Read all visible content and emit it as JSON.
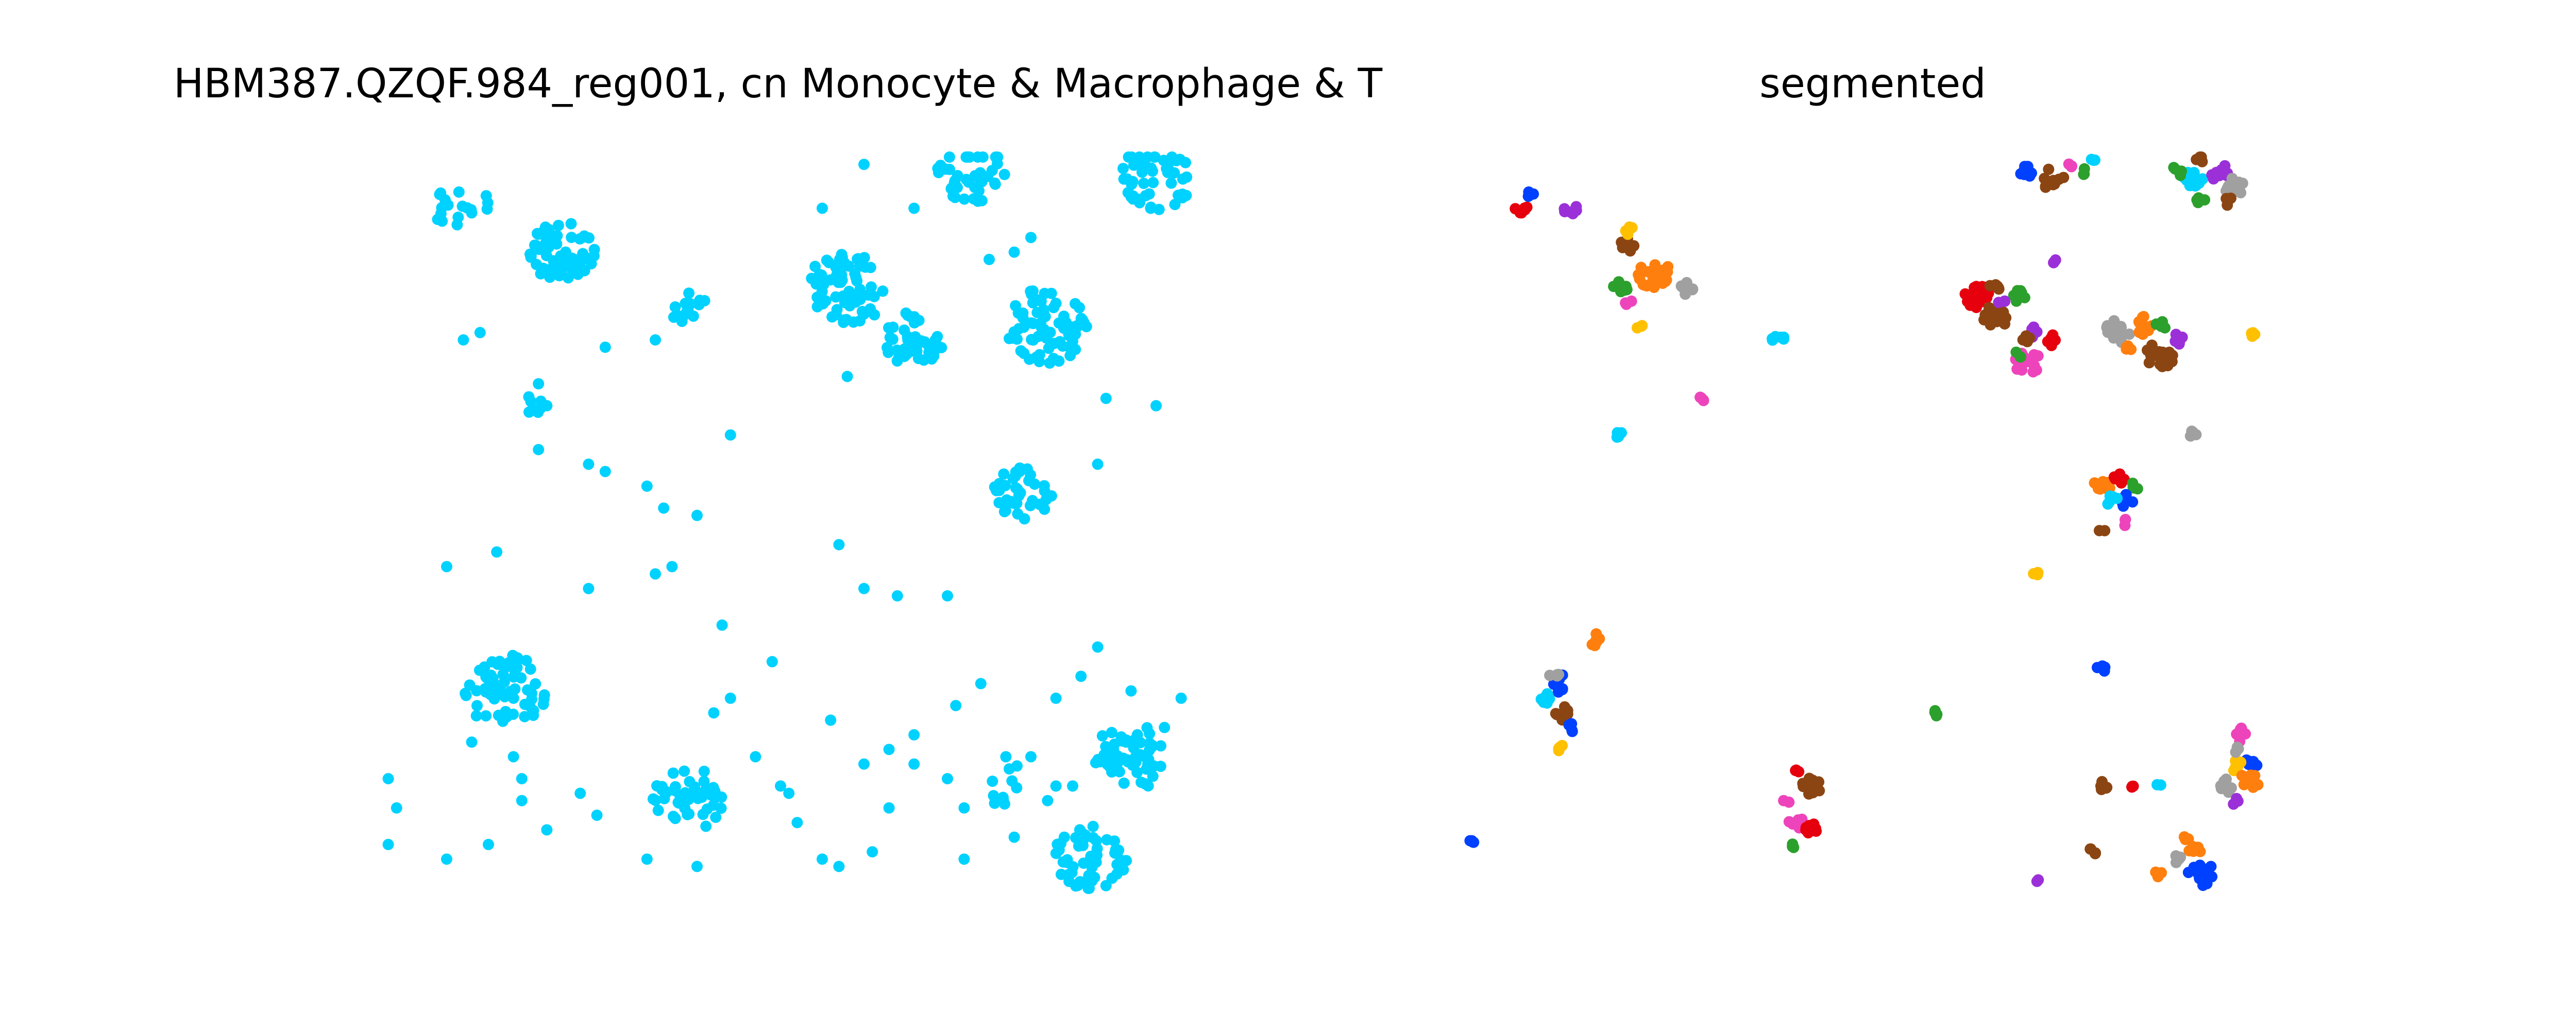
{
  "figure": {
    "left_title": "HBM387.QZQF.984_reg001, cn Monocyte & Macrophage & T",
    "right_title": "segmented"
  },
  "chart_data": [
    {
      "type": "scatter",
      "title": "HBM387.QZQF.984_reg001, cn Monocyte & Macrophage & T",
      "xlabel": "",
      "ylabel": "",
      "axes": "off",
      "grid": false,
      "xlim": [
        0,
        100
      ],
      "ylim": [
        0,
        100
      ],
      "point_color": "#00d2ff",
      "clusters": [
        {
          "x": 12,
          "y": 93,
          "r": 3.5,
          "n": 18
        },
        {
          "x": 24,
          "y": 87,
          "r": 4.2,
          "n": 55
        },
        {
          "x": 39,
          "y": 79,
          "r": 2.5,
          "n": 14
        },
        {
          "x": 58,
          "y": 82,
          "r": 5.0,
          "n": 70
        },
        {
          "x": 66,
          "y": 75,
          "r": 3.8,
          "n": 45
        },
        {
          "x": 82,
          "y": 77,
          "r": 5.2,
          "n": 70
        },
        {
          "x": 73,
          "y": 98,
          "r": 4.2,
          "n": 40
        },
        {
          "x": 95,
          "y": 97,
          "r": 4.5,
          "n": 50
        },
        {
          "x": 79,
          "y": 54,
          "r": 3.5,
          "n": 40
        },
        {
          "x": 17,
          "y": 27,
          "r": 5.0,
          "n": 60
        },
        {
          "x": 39,
          "y": 12,
          "r": 4.5,
          "n": 45
        },
        {
          "x": 92,
          "y": 18,
          "r": 4.5,
          "n": 55
        },
        {
          "x": 87,
          "y": 4,
          "r": 4.5,
          "n": 55
        },
        {
          "x": 21,
          "y": 66,
          "r": 1.8,
          "n": 8
        },
        {
          "x": 78,
          "y": 14,
          "r": 3.5,
          "n": 10
        }
      ],
      "scatter": [
        [
          60,
          99
        ],
        [
          66,
          93
        ],
        [
          55,
          93
        ],
        [
          80,
          89
        ],
        [
          75,
          86
        ],
        [
          78,
          87
        ],
        [
          83,
          80
        ],
        [
          12,
          75
        ],
        [
          14,
          76
        ],
        [
          21,
          69
        ],
        [
          22,
          66
        ],
        [
          29,
          74
        ],
        [
          35,
          75
        ],
        [
          44,
          62
        ],
        [
          21,
          60
        ],
        [
          27,
          58
        ],
        [
          29,
          57
        ],
        [
          34,
          55
        ],
        [
          36,
          52
        ],
        [
          40,
          51
        ],
        [
          58,
          70
        ],
        [
          89,
          67
        ],
        [
          95,
          66
        ],
        [
          88,
          58
        ],
        [
          10,
          44
        ],
        [
          16,
          46
        ],
        [
          27,
          41
        ],
        [
          35,
          43
        ],
        [
          37,
          44
        ],
        [
          43,
          36
        ],
        [
          49,
          31
        ],
        [
          57,
          47
        ],
        [
          60,
          41
        ],
        [
          64,
          40
        ],
        [
          70,
          40
        ],
        [
          13,
          20
        ],
        [
          18,
          18
        ],
        [
          19,
          15
        ],
        [
          19,
          12
        ],
        [
          22,
          8
        ],
        [
          26,
          13
        ],
        [
          28,
          10
        ],
        [
          34,
          4
        ],
        [
          40,
          3
        ],
        [
          10,
          4
        ],
        [
          15,
          6
        ],
        [
          3,
          6
        ],
        [
          4,
          11
        ],
        [
          3,
          15
        ],
        [
          42,
          24
        ],
        [
          44,
          26
        ],
        [
          50,
          14
        ],
        [
          52,
          9
        ],
        [
          55,
          4
        ],
        [
          57,
          3
        ],
        [
          61,
          5
        ],
        [
          63,
          11
        ],
        [
          66,
          21
        ],
        [
          71,
          25
        ],
        [
          74,
          28
        ],
        [
          77,
          18
        ],
        [
          80,
          18
        ],
        [
          83,
          26
        ],
        [
          82,
          12
        ],
        [
          84,
          7
        ],
        [
          86,
          29
        ],
        [
          88,
          33
        ],
        [
          92,
          27
        ],
        [
          98,
          26
        ],
        [
          56,
          23
        ],
        [
          63,
          19
        ],
        [
          66,
          17
        ],
        [
          70,
          15
        ],
        [
          72,
          11
        ],
        [
          72,
          4
        ],
        [
          78,
          7
        ],
        [
          83,
          14
        ],
        [
          51,
          13
        ],
        [
          47,
          18
        ],
        [
          60,
          17
        ],
        [
          85,
          14
        ],
        [
          96,
          22
        ]
      ]
    },
    {
      "type": "scatter",
      "title": "segmented",
      "xlabel": "",
      "ylabel": "",
      "axes": "off",
      "grid": false,
      "xlim": [
        0,
        100
      ],
      "ylim": [
        0,
        100
      ],
      "palette": [
        "#e6000d",
        "#ff7f0e",
        "#2ca02c",
        "#9b30d9",
        "#8b4513",
        "#ee44bb",
        "#a0a0a0",
        "#00d2ff",
        "#ffc000",
        "#0040ff"
      ],
      "segments": [
        {
          "x": 7,
          "y": 93,
          "color": "#e6000d",
          "r": 0.9,
          "n": 6
        },
        {
          "x": 8,
          "y": 95,
          "color": "#0040ff",
          "r": 0.6,
          "n": 3
        },
        {
          "x": 13,
          "y": 93,
          "color": "#9b30d9",
          "r": 0.9,
          "n": 6
        },
        {
          "x": 23,
          "y": 84,
          "color": "#ff7f0e",
          "r": 2.0,
          "n": 22
        },
        {
          "x": 20,
          "y": 88,
          "color": "#8b4513",
          "r": 1.0,
          "n": 8
        },
        {
          "x": 19,
          "y": 82,
          "color": "#2ca02c",
          "r": 1.0,
          "n": 8
        },
        {
          "x": 20,
          "y": 90,
          "color": "#ffc000",
          "r": 0.7,
          "n": 5
        },
        {
          "x": 27,
          "y": 82,
          "color": "#a0a0a0",
          "r": 0.9,
          "n": 6
        },
        {
          "x": 20,
          "y": 80,
          "color": "#ee44bb",
          "r": 0.5,
          "n": 3
        },
        {
          "x": 21,
          "y": 77,
          "color": "#ffc000",
          "r": 0.6,
          "n": 3
        },
        {
          "x": 38,
          "y": 75,
          "color": "#00d2ff",
          "r": 0.8,
          "n": 6
        },
        {
          "x": 29,
          "y": 67,
          "color": "#ee44bb",
          "r": 0.6,
          "n": 4
        },
        {
          "x": 19,
          "y": 62,
          "color": "#00d2ff",
          "r": 0.6,
          "n": 4
        },
        {
          "x": 68,
          "y": 98,
          "color": "#0040ff",
          "r": 1.0,
          "n": 8
        },
        {
          "x": 71,
          "y": 97,
          "color": "#8b4513",
          "r": 1.4,
          "n": 12
        },
        {
          "x": 73,
          "y": 99,
          "color": "#ee44bb",
          "r": 0.5,
          "n": 3
        },
        {
          "x": 75,
          "y": 98,
          "color": "#2ca02c",
          "r": 0.5,
          "n": 3
        },
        {
          "x": 76,
          "y": 100,
          "color": "#00d2ff",
          "r": 0.5,
          "n": 3
        },
        {
          "x": 88,
          "y": 97,
          "color": "#00d2ff",
          "r": 1.5,
          "n": 14
        },
        {
          "x": 91,
          "y": 98,
          "color": "#9b30d9",
          "r": 1.2,
          "n": 10
        },
        {
          "x": 93,
          "y": 96,
          "color": "#a0a0a0",
          "r": 1.2,
          "n": 10
        },
        {
          "x": 89,
          "y": 100,
          "color": "#8b4513",
          "r": 0.7,
          "n": 5
        },
        {
          "x": 86,
          "y": 98,
          "color": "#2ca02c",
          "r": 0.7,
          "n": 5
        },
        {
          "x": 89,
          "y": 94,
          "color": "#2ca02c",
          "r": 0.6,
          "n": 4
        },
        {
          "x": 92,
          "y": 94,
          "color": "#8b4513",
          "r": 0.7,
          "n": 5
        },
        {
          "x": 71,
          "y": 86,
          "color": "#9b30d9",
          "r": 0.5,
          "n": 3
        },
        {
          "x": 62,
          "y": 81,
          "color": "#e6000d",
          "r": 1.6,
          "n": 16
        },
        {
          "x": 64,
          "y": 78,
          "color": "#8b4513",
          "r": 1.6,
          "n": 16
        },
        {
          "x": 67,
          "y": 81,
          "color": "#2ca02c",
          "r": 1.0,
          "n": 8
        },
        {
          "x": 64,
          "y": 82,
          "color": "#8b4513",
          "r": 0.7,
          "n": 5
        },
        {
          "x": 65,
          "y": 80,
          "color": "#9b30d9",
          "r": 0.5,
          "n": 3
        },
        {
          "x": 68,
          "y": 72,
          "color": "#ee44bb",
          "r": 1.6,
          "n": 16
        },
        {
          "x": 69,
          "y": 76,
          "color": "#9b30d9",
          "r": 0.8,
          "n": 5
        },
        {
          "x": 71,
          "y": 75,
          "color": "#e6000d",
          "r": 0.8,
          "n": 6
        },
        {
          "x": 68,
          "y": 75,
          "color": "#8b4513",
          "r": 0.6,
          "n": 4
        },
        {
          "x": 67,
          "y": 73,
          "color": "#2ca02c",
          "r": 0.5,
          "n": 3
        },
        {
          "x": 79,
          "y": 76,
          "color": "#a0a0a0",
          "r": 1.7,
          "n": 16
        },
        {
          "x": 82,
          "y": 77,
          "color": "#ff7f0e",
          "r": 1.3,
          "n": 12
        },
        {
          "x": 84,
          "y": 73,
          "color": "#8b4513",
          "r": 1.8,
          "n": 18
        },
        {
          "x": 86,
          "y": 75,
          "color": "#9b30d9",
          "r": 0.8,
          "n": 6
        },
        {
          "x": 84,
          "y": 77,
          "color": "#2ca02c",
          "r": 0.7,
          "n": 5
        },
        {
          "x": 80,
          "y": 74,
          "color": "#ff7f0e",
          "r": 0.6,
          "n": 4
        },
        {
          "x": 95,
          "y": 76,
          "color": "#ffc000",
          "r": 0.6,
          "n": 4
        },
        {
          "x": 88,
          "y": 62,
          "color": "#a0a0a0",
          "r": 0.6,
          "n": 4
        },
        {
          "x": 77,
          "y": 55,
          "color": "#ff7f0e",
          "r": 1.0,
          "n": 8
        },
        {
          "x": 79,
          "y": 56,
          "color": "#e6000d",
          "r": 0.7,
          "n": 5
        },
        {
          "x": 81,
          "y": 55,
          "color": "#2ca02c",
          "r": 0.6,
          "n": 4
        },
        {
          "x": 80,
          "y": 53,
          "color": "#0040ff",
          "r": 0.9,
          "n": 6
        },
        {
          "x": 78,
          "y": 53,
          "color": "#00d2ff",
          "r": 0.9,
          "n": 6
        },
        {
          "x": 80,
          "y": 50,
          "color": "#ee44bb",
          "r": 0.5,
          "n": 3
        },
        {
          "x": 77,
          "y": 49,
          "color": "#8b4513",
          "r": 0.4,
          "n": 2
        },
        {
          "x": 69,
          "y": 43,
          "color": "#ffc000",
          "r": 0.5,
          "n": 3
        },
        {
          "x": 77,
          "y": 30,
          "color": "#0040ff",
          "r": 0.6,
          "n": 4
        },
        {
          "x": 16,
          "y": 34,
          "color": "#ff7f0e",
          "r": 0.9,
          "n": 6
        },
        {
          "x": 12,
          "y": 28,
          "color": "#0040ff",
          "r": 1.3,
          "n": 12
        },
        {
          "x": 10,
          "y": 26,
          "color": "#00d2ff",
          "r": 0.8,
          "n": 6
        },
        {
          "x": 12,
          "y": 24,
          "color": "#8b4513",
          "r": 1.0,
          "n": 8
        },
        {
          "x": 11,
          "y": 29,
          "color": "#a0a0a0",
          "r": 0.6,
          "n": 4
        },
        {
          "x": 13,
          "y": 22,
          "color": "#0040ff",
          "r": 0.6,
          "n": 4
        },
        {
          "x": 12,
          "y": 19,
          "color": "#ffc000",
          "r": 0.6,
          "n": 4
        },
        {
          "x": 57,
          "y": 24,
          "color": "#2ca02c",
          "r": 0.6,
          "n": 4
        },
        {
          "x": 40,
          "y": 16,
          "color": "#e6000d",
          "r": 0.5,
          "n": 3
        },
        {
          "x": 42,
          "y": 14,
          "color": "#8b4513",
          "r": 1.2,
          "n": 10
        },
        {
          "x": 40,
          "y": 9,
          "color": "#ee44bb",
          "r": 1.0,
          "n": 8
        },
        {
          "x": 42,
          "y": 8,
          "color": "#e6000d",
          "r": 1.0,
          "n": 8
        },
        {
          "x": 40,
          "y": 6,
          "color": "#2ca02c",
          "r": 0.5,
          "n": 3
        },
        {
          "x": 39,
          "y": 12,
          "color": "#ee44bb",
          "r": 0.4,
          "n": 2
        },
        {
          "x": 1,
          "y": 6,
          "color": "#0040ff",
          "r": 0.6,
          "n": 4
        },
        {
          "x": 77,
          "y": 14,
          "color": "#8b4513",
          "r": 0.8,
          "n": 6
        },
        {
          "x": 81,
          "y": 14,
          "color": "#e6000d",
          "r": 0.5,
          "n": 3
        },
        {
          "x": 84,
          "y": 14,
          "color": "#00d2ff",
          "r": 0.4,
          "n": 2
        },
        {
          "x": 76,
          "y": 5,
          "color": "#8b4513",
          "r": 0.6,
          "n": 4
        },
        {
          "x": 69,
          "y": 1,
          "color": "#9b30d9",
          "r": 0.4,
          "n": 2
        },
        {
          "x": 94,
          "y": 21,
          "color": "#ee44bb",
          "r": 1.0,
          "n": 8
        },
        {
          "x": 95,
          "y": 17,
          "color": "#0040ff",
          "r": 0.8,
          "n": 6
        },
        {
          "x": 93,
          "y": 17,
          "color": "#ffc000",
          "r": 0.9,
          "n": 7
        },
        {
          "x": 95,
          "y": 15,
          "color": "#ff7f0e",
          "r": 1.2,
          "n": 10
        },
        {
          "x": 92,
          "y": 14,
          "color": "#a0a0a0",
          "r": 1.0,
          "n": 8
        },
        {
          "x": 93,
          "y": 12,
          "color": "#9b30d9",
          "r": 0.5,
          "n": 3
        },
        {
          "x": 93,
          "y": 19,
          "color": "#a0a0a0",
          "r": 0.5,
          "n": 3
        },
        {
          "x": 89,
          "y": 2,
          "color": "#0040ff",
          "r": 1.6,
          "n": 16
        },
        {
          "x": 88,
          "y": 5,
          "color": "#ff7f0e",
          "r": 0.9,
          "n": 6
        },
        {
          "x": 86,
          "y": 4,
          "color": "#a0a0a0",
          "r": 0.6,
          "n": 4
        },
        {
          "x": 84,
          "y": 2,
          "color": "#ff7f0e",
          "r": 0.6,
          "n": 4
        },
        {
          "x": 87,
          "y": 7,
          "color": "#ff7f0e",
          "r": 0.5,
          "n": 3
        }
      ]
    }
  ]
}
